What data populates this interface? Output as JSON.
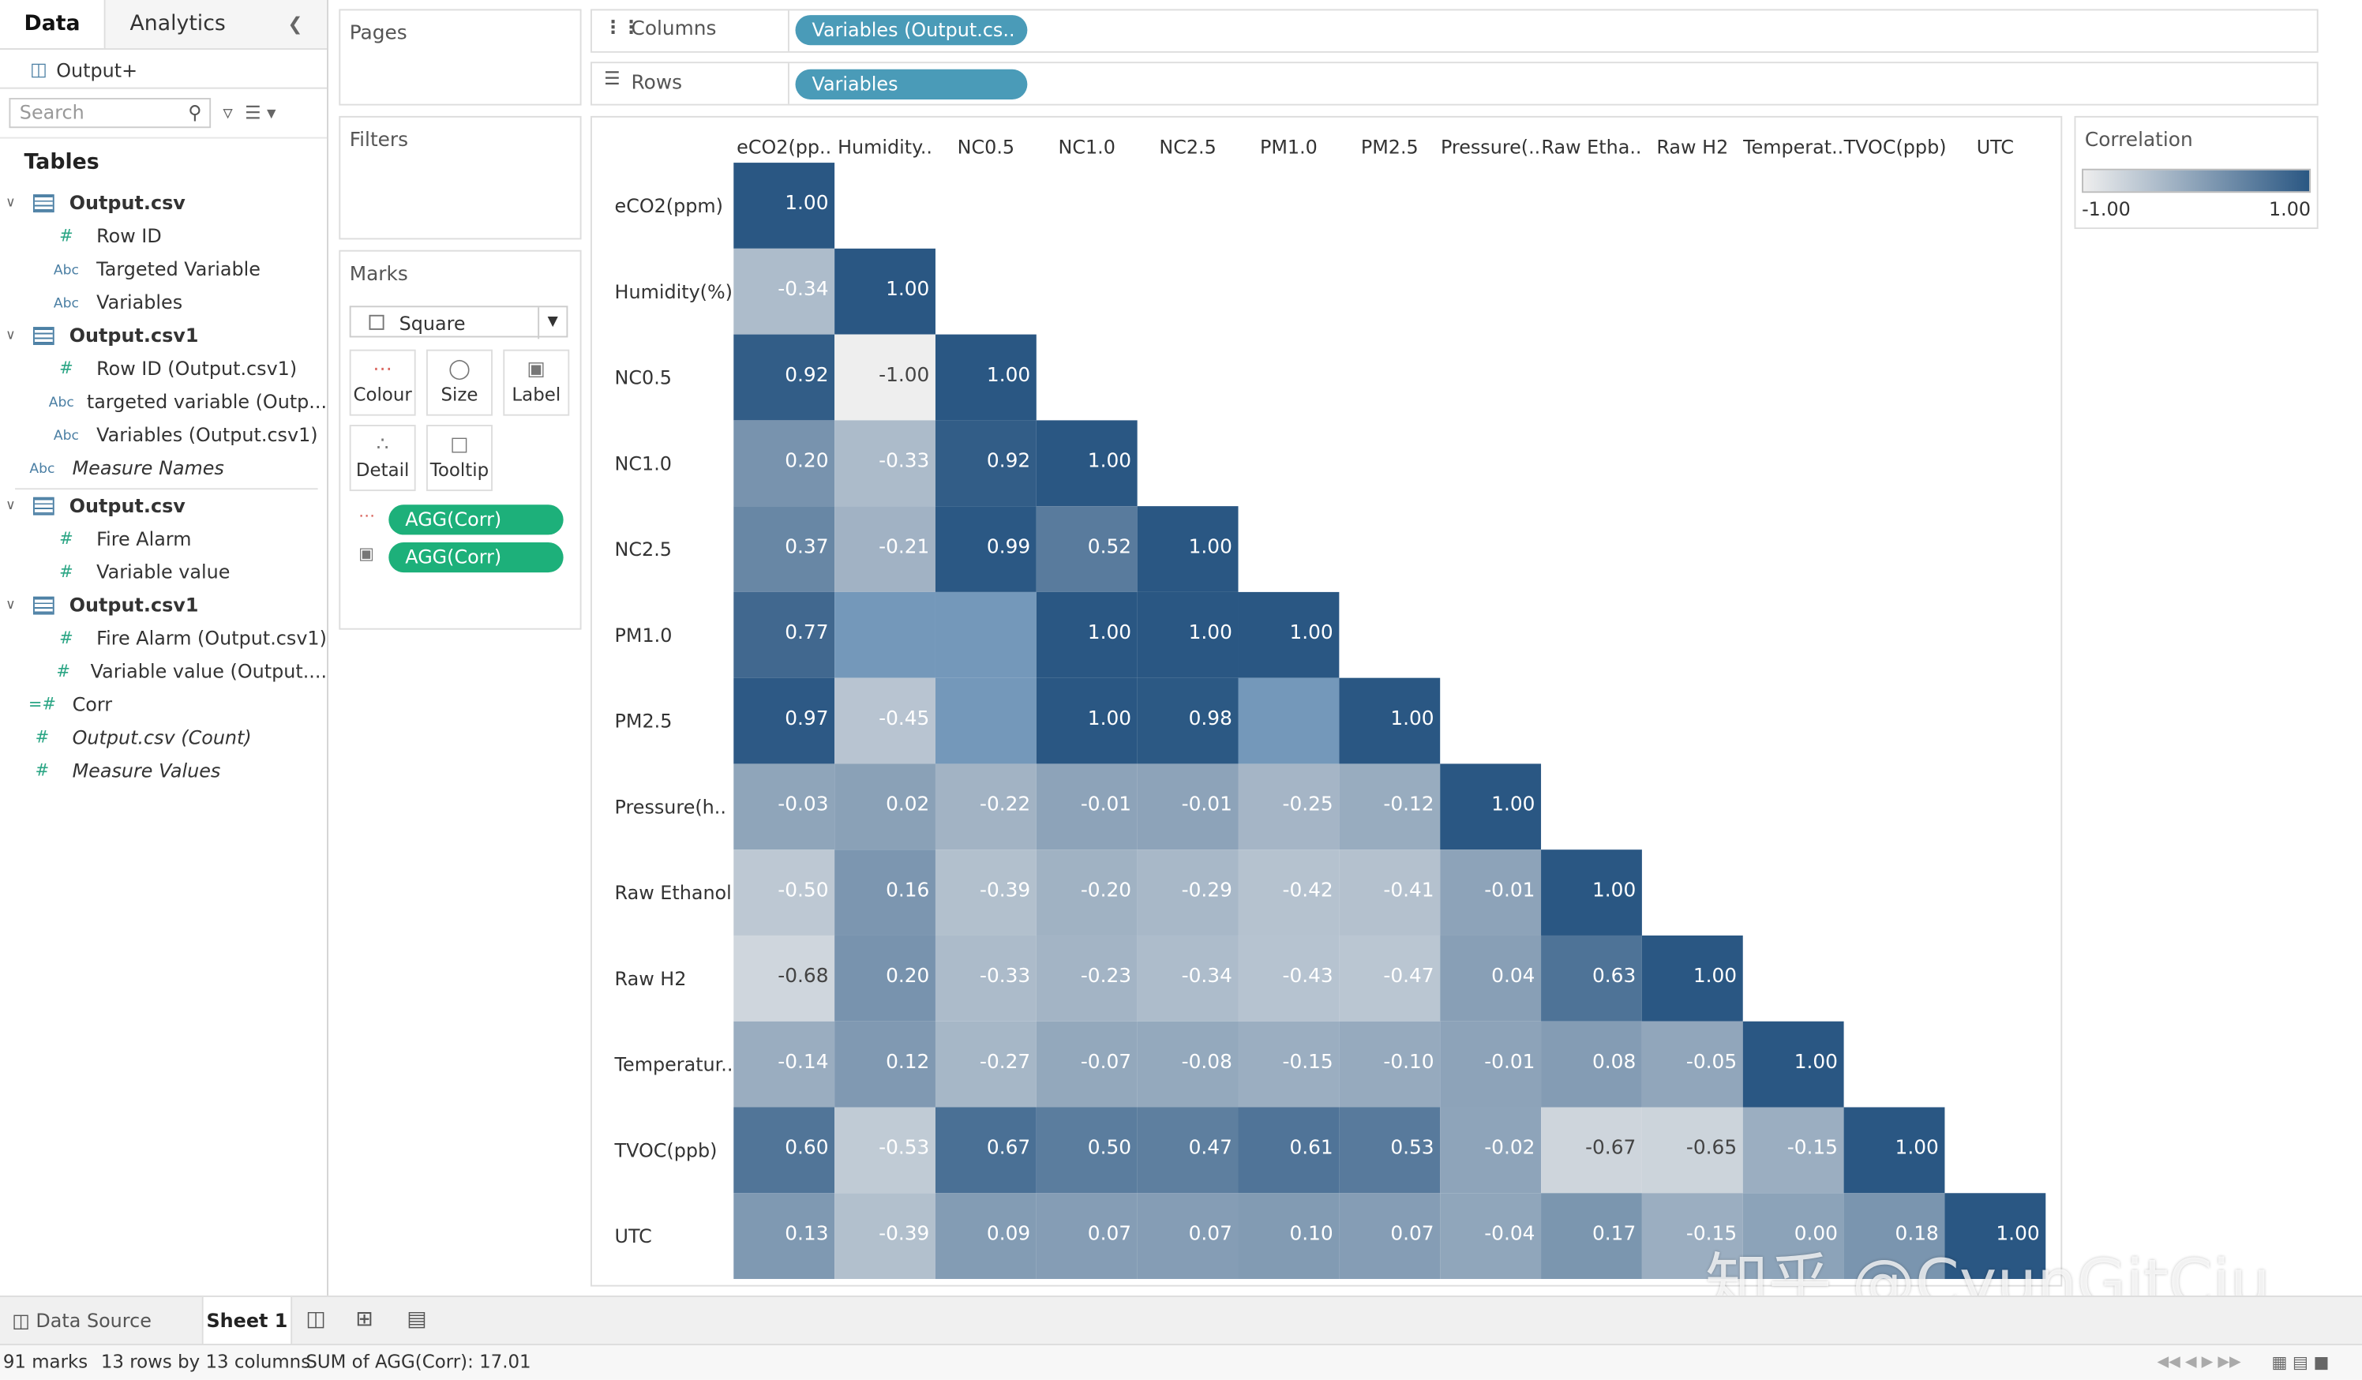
{
  "sidebar": {
    "tabs": [
      "Data",
      "Analytics"
    ],
    "datasource": "Output+",
    "search_placeholder": "Search",
    "tables_heading": "Tables",
    "tree": [
      {
        "kind": "table",
        "label": "Output.csv"
      },
      {
        "kind": "measure",
        "label": "Row ID"
      },
      {
        "kind": "dim",
        "label": "Targeted Variable"
      },
      {
        "kind": "dim",
        "label": "Variables"
      },
      {
        "kind": "table",
        "label": "Output.csv1"
      },
      {
        "kind": "measure",
        "label": "Row ID (Output.csv1)"
      },
      {
        "kind": "dim",
        "label": "targeted variable (Outp..."
      },
      {
        "kind": "dim",
        "label": "Variables (Output.csv1)"
      },
      {
        "kind": "dim-italic",
        "label": "Measure Names"
      },
      {
        "kind": "table",
        "label": "Output.csv"
      },
      {
        "kind": "measure",
        "label": "Fire Alarm"
      },
      {
        "kind": "measure",
        "label": "Variable value"
      },
      {
        "kind": "table",
        "label": "Output.csv1"
      },
      {
        "kind": "measure",
        "label": "Fire Alarm (Output.csv1)"
      },
      {
        "kind": "measure",
        "label": "Variable value (Output...."
      },
      {
        "kind": "calc",
        "label": "Corr"
      },
      {
        "kind": "measure-italic",
        "label": "Output.csv (Count)"
      },
      {
        "kind": "measure-italic",
        "label": "Measure Values"
      }
    ]
  },
  "shelves": {
    "pages": "Pages",
    "filters": "Filters",
    "marks": "Marks",
    "mark_type": "Square",
    "mark_buttons": [
      "Colour",
      "Size",
      "Label",
      "Detail",
      "Tooltip"
    ],
    "mark_pills": [
      "AGG(Corr)",
      "AGG(Corr)"
    ],
    "columns_label": "Columns",
    "columns_pill": "Variables (Output.cs..",
    "rows_label": "Rows",
    "rows_pill": "Variables"
  },
  "legend": {
    "title": "Correlation",
    "min": "-1.00",
    "max": "1.00",
    "color_low": "#eeeeee",
    "color_high": "#2a5783"
  },
  "chart_data": {
    "type": "heatmap",
    "col_labels": [
      "eCO2(pp..",
      "Humidity..",
      "NC0.5",
      "NC1.0",
      "NC2.5",
      "PM1.0",
      "PM2.5",
      "Pressure(..",
      "Raw Etha..",
      "Raw H2",
      "Temperat..",
      "TVOC(ppb)",
      "UTC"
    ],
    "row_labels": [
      "eCO2(ppm)",
      "Humidity(%)",
      "NC0.5",
      "NC1.0",
      "NC2.5",
      "PM1.0",
      "PM2.5",
      "Pressure(h..",
      "Raw Ethanol",
      "Raw H2",
      "Temperatur..",
      "TVOC(ppb)",
      "UTC"
    ],
    "values": [
      [
        1.0
      ],
      [
        -0.34,
        1.0
      ],
      [
        0.92,
        -1.0,
        1.0
      ],
      [
        0.2,
        -0.33,
        0.92,
        1.0
      ],
      [
        0.37,
        -0.21,
        0.99,
        0.52,
        1.0
      ],
      [
        0.77,
        null,
        null,
        1.0,
        1.0,
        1.0
      ],
      [
        0.97,
        -0.45,
        null,
        1.0,
        0.98,
        null,
        1.0
      ],
      [
        -0.03,
        0.02,
        -0.22,
        -0.01,
        -0.01,
        -0.25,
        -0.12,
        1.0
      ],
      [
        -0.5,
        0.16,
        -0.39,
        -0.2,
        -0.29,
        -0.42,
        -0.41,
        -0.01,
        1.0
      ],
      [
        -0.68,
        0.2,
        -0.33,
        -0.23,
        -0.34,
        -0.43,
        -0.47,
        0.04,
        0.63,
        1.0
      ],
      [
        -0.14,
        0.12,
        -0.27,
        -0.07,
        -0.08,
        -0.15,
        -0.1,
        -0.01,
        0.08,
        -0.05,
        1.0
      ],
      [
        0.6,
        -0.53,
        0.67,
        0.5,
        0.47,
        0.61,
        0.53,
        -0.02,
        -0.67,
        -0.65,
        -0.15,
        1.0
      ],
      [
        0.13,
        -0.39,
        0.09,
        0.07,
        0.07,
        0.1,
        0.07,
        -0.04,
        0.17,
        -0.15,
        0.0,
        0.18,
        1.0
      ]
    ],
    "range": [
      -1,
      1
    ]
  },
  "bottom": {
    "data_source": "Data Source",
    "sheet": "Sheet 1"
  },
  "status": {
    "marks": "91 marks",
    "dims": "13 rows by 13 columns",
    "sum": "SUM of AGG(Corr): 17.01"
  },
  "watermark": "知乎 @CyunGitCiu"
}
